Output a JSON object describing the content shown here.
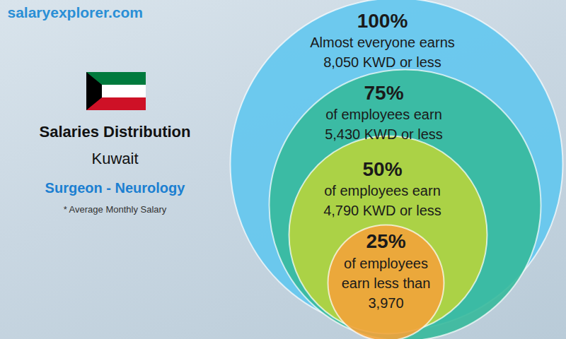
{
  "chart_data": {
    "type": "bubble",
    "title": "Salaries Distribution",
    "subtitle": "Kuwait",
    "job_title": "Surgeon - Neurology",
    "caption": "* Average Monthly Salary",
    "watermark": "salaryexplorer.com",
    "categories": [
      "100%",
      "75%",
      "50%",
      "25%"
    ],
    "descriptions": [
      [
        "Almost everyone earns"
      ],
      [
        "of employees earn"
      ],
      [
        "of employees earn"
      ],
      [
        "of employees",
        "earn less than"
      ]
    ],
    "values": [
      8050,
      5430,
      4790,
      3970
    ],
    "value_labels": [
      "8,050 KWD or less",
      "5,430 KWD or less",
      "4,790 KWD or less",
      "3,970"
    ],
    "colors": [
      "#62c6ee",
      "#36b99b",
      "#b8d53c",
      "#f2a33a"
    ],
    "data_labels": true
  }
}
